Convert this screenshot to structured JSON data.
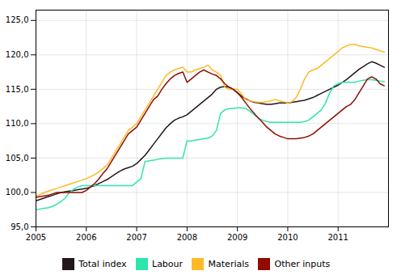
{
  "chart_data": {
    "type": "line",
    "x": [
      2005.0,
      2005.083333,
      2005.166667,
      2005.25,
      2005.333333,
      2005.416667,
      2005.5,
      2005.583333,
      2005.666667,
      2005.75,
      2005.833333,
      2005.916667,
      2006.0,
      2006.083333,
      2006.166667,
      2006.25,
      2006.333333,
      2006.416667,
      2006.5,
      2006.583333,
      2006.666667,
      2006.75,
      2006.833333,
      2006.916667,
      2007.0,
      2007.083333,
      2007.166667,
      2007.25,
      2007.333333,
      2007.416667,
      2007.5,
      2007.583333,
      2007.666667,
      2007.75,
      2007.833333,
      2007.916667,
      2008.0,
      2008.083333,
      2008.166667,
      2008.25,
      2008.333333,
      2008.416667,
      2008.5,
      2008.583333,
      2008.666667,
      2008.75,
      2008.833333,
      2008.916667,
      2009.0,
      2009.083333,
      2009.166667,
      2009.25,
      2009.333333,
      2009.416667,
      2009.5,
      2009.583333,
      2009.666667,
      2009.75,
      2009.833333,
      2009.916667,
      2010.0,
      2010.083333,
      2010.166667,
      2010.25,
      2010.333333,
      2010.416667,
      2010.5,
      2010.583333,
      2010.666667,
      2010.75,
      2010.833333,
      2010.916667,
      2011.0,
      2011.083333,
      2011.166667,
      2011.25,
      2011.333333,
      2011.416667,
      2011.5,
      2011.583333,
      2011.666667,
      2011.75,
      2011.833333,
      2011.916667
    ],
    "series": [
      {
        "name": "Total index",
        "values": [
          98.8,
          99.0,
          99.2,
          99.4,
          99.6,
          99.8,
          100.0,
          100.1,
          100.2,
          100.3,
          100.4,
          100.5,
          100.6,
          100.8,
          101.0,
          101.3,
          101.6,
          101.9,
          102.3,
          102.7,
          103.1,
          103.4,
          103.6,
          103.8,
          104.2,
          104.8,
          105.4,
          106.2,
          107.0,
          107.8,
          108.6,
          109.4,
          110.0,
          110.5,
          110.8,
          111.0,
          111.3,
          111.8,
          112.3,
          112.8,
          113.3,
          113.8,
          114.3,
          115.0,
          115.3,
          115.4,
          115.3,
          115.0,
          114.5,
          114.0,
          113.6,
          113.3,
          113.1,
          113.0,
          112.9,
          112.8,
          112.8,
          112.9,
          113.0,
          113.0,
          113.0,
          113.1,
          113.2,
          113.3,
          113.4,
          113.6,
          113.8,
          114.1,
          114.4,
          114.7,
          115.0,
          115.3,
          115.6,
          116.0,
          116.4,
          116.9,
          117.4,
          117.9,
          118.3,
          118.7,
          119.0,
          118.8,
          118.5,
          118.2
        ]
      },
      {
        "name": "Labour",
        "values": [
          97.5,
          97.6,
          97.7,
          97.8,
          98.0,
          98.3,
          98.7,
          99.2,
          100.0,
          100.5,
          100.8,
          101.0,
          101.0,
          101.0,
          101.0,
          101.0,
          101.0,
          101.0,
          101.0,
          101.0,
          101.0,
          101.0,
          101.0,
          101.0,
          101.5,
          102.0,
          104.5,
          104.6,
          104.7,
          104.8,
          104.9,
          105.0,
          105.0,
          105.0,
          105.0,
          105.0,
          107.5,
          107.5,
          107.6,
          107.7,
          107.8,
          107.9,
          108.2,
          109.0,
          111.5,
          112.0,
          112.2,
          112.2,
          112.3,
          112.3,
          112.2,
          111.8,
          111.3,
          110.8,
          110.5,
          110.3,
          110.2,
          110.2,
          110.2,
          110.2,
          110.2,
          110.2,
          110.2,
          110.2,
          110.3,
          110.5,
          111.0,
          111.5,
          112.0,
          113.0,
          114.5,
          115.5,
          115.8,
          116.0,
          116.0,
          116.0,
          116.0,
          116.2,
          116.3,
          116.4,
          116.4,
          116.3,
          116.2,
          116.1
        ]
      },
      {
        "name": "Materials",
        "values": [
          99.5,
          99.7,
          100.0,
          100.2,
          100.4,
          100.6,
          100.8,
          101.0,
          101.2,
          101.4,
          101.6,
          101.8,
          102.0,
          102.3,
          102.6,
          103.0,
          103.5,
          104.0,
          105.0,
          106.0,
          107.0,
          108.0,
          109.0,
          109.5,
          110.0,
          111.0,
          112.0,
          113.0,
          114.0,
          115.0,
          116.0,
          117.0,
          117.5,
          117.8,
          118.0,
          118.2,
          117.5,
          117.5,
          117.8,
          118.0,
          118.2,
          118.5,
          117.8,
          117.5,
          117.0,
          115.3,
          115.0,
          115.0,
          115.0,
          114.3,
          113.5,
          113.3,
          113.2,
          113.1,
          113.1,
          113.2,
          113.3,
          113.5,
          113.3,
          113.2,
          113.0,
          113.2,
          113.8,
          115.0,
          116.5,
          117.5,
          117.8,
          118.0,
          118.5,
          119.0,
          119.5,
          120.0,
          120.5,
          121.0,
          121.3,
          121.5,
          121.5,
          121.3,
          121.2,
          121.1,
          121.0,
          120.8,
          120.6,
          120.4
        ]
      },
      {
        "name": "Other inputs",
        "values": [
          99.3,
          99.4,
          99.5,
          99.6,
          99.8,
          100.0,
          100.0,
          100.0,
          100.0,
          100.0,
          100.0,
          100.0,
          100.3,
          100.8,
          101.3,
          102.0,
          102.8,
          103.5,
          104.5,
          105.5,
          106.5,
          107.5,
          108.5,
          109.0,
          109.5,
          110.5,
          111.5,
          112.5,
          113.5,
          114.0,
          115.0,
          115.8,
          116.5,
          117.0,
          117.3,
          117.5,
          116.0,
          116.5,
          117.0,
          117.5,
          117.8,
          117.5,
          117.2,
          117.0,
          116.5,
          115.8,
          115.3,
          115.0,
          114.5,
          113.8,
          113.0,
          112.2,
          111.5,
          110.8,
          110.2,
          109.5,
          109.0,
          108.5,
          108.2,
          108.0,
          107.8,
          107.8,
          107.8,
          107.9,
          108.0,
          108.2,
          108.5,
          109.0,
          109.5,
          110.0,
          110.5,
          111.0,
          111.5,
          112.0,
          112.5,
          112.8,
          113.5,
          114.5,
          115.5,
          116.5,
          116.8,
          116.5,
          115.8,
          115.5
        ]
      }
    ],
    "xlim": [
      2005.0,
      2012.0
    ],
    "xticks": [
      2005,
      2006,
      2007,
      2008,
      2009,
      2010,
      2011
    ],
    "ylim": [
      95.0,
      126.5
    ],
    "yticks": [
      {
        "value": 95.0,
        "label": "95,0"
      },
      {
        "value": 100.0,
        "label": "100,0"
      },
      {
        "value": 105.0,
        "label": "105,0"
      },
      {
        "value": 110.0,
        "label": "110,0"
      },
      {
        "value": 115.0,
        "label": "115,0"
      },
      {
        "value": 120.0,
        "label": "120,0"
      },
      {
        "value": 125.0,
        "label": "125,0"
      }
    ],
    "grid": true,
    "legend": "bottom"
  }
}
